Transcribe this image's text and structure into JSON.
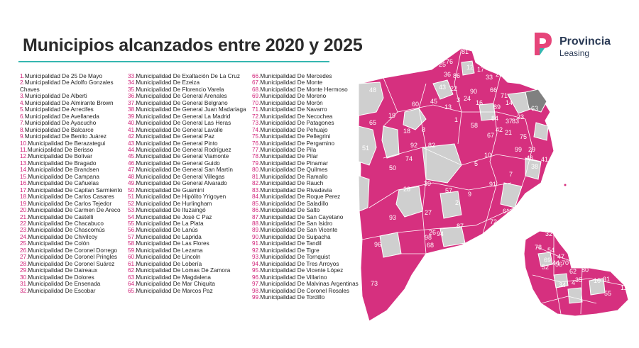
{
  "title": "Municipios alcanzados entre 2020 y 2025",
  "brand": {
    "line1": "Provincia",
    "line2": "Leasing"
  },
  "colors": {
    "accent_rule": "#35b6b0",
    "number": "#d1247a",
    "reached": "#d6307f",
    "not_reached": "#cfcfcf",
    "logo_pink": "#e6457a",
    "logo_teal": "#35b6b0",
    "logo_text": "#2a3a55"
  },
  "municipalities": [
    {
      "n": "1.",
      "name": "Municipalidad De 25 De Mayo"
    },
    {
      "n": "2.",
      "name": "Municipalidad De Adolfo Gonzales Chaves"
    },
    {
      "n": "3.",
      "name": "Municipalidad De Alberti"
    },
    {
      "n": "4.",
      "name": "Municipalidad De Almirante Brown"
    },
    {
      "n": "5.",
      "name": "Municipalidad De Arrecifes"
    },
    {
      "n": "6.",
      "name": "Municipalidad De Avellaneda"
    },
    {
      "n": "7.",
      "name": "Municipalidad De Ayacucho"
    },
    {
      "n": "8.",
      "name": "Municipalidad De Balcarce"
    },
    {
      "n": "9.",
      "name": "Municipalidad De Benito Juárez"
    },
    {
      "n": "10.",
      "name": "Municipalidad De Berazategui"
    },
    {
      "n": "11.",
      "name": "Municipalidad De Berisso"
    },
    {
      "n": "12.",
      "name": "Municipalidad De Bolívar"
    },
    {
      "n": "13.",
      "name": "Municipalidad De Bragado"
    },
    {
      "n": "14.",
      "name": "Municipalidad De Brandsen"
    },
    {
      "n": "15.",
      "name": "Municipalidad De Campana"
    },
    {
      "n": "16.",
      "name": "Municipalidad De Cañuelas"
    },
    {
      "n": "17.",
      "name": "Municipalidad De Capitan Sarmiento"
    },
    {
      "n": "18.",
      "name": "Municipalidad De Carlos Casares"
    },
    {
      "n": "19.",
      "name": "Municipalidad De Carlos Tejedor"
    },
    {
      "n": "20.",
      "name": "Municipalidad De Carmen De Areco"
    },
    {
      "n": "21.",
      "name": "Municipalidad De Castelli"
    },
    {
      "n": "22.",
      "name": "Municipalidad De Chacabuco"
    },
    {
      "n": "23.",
      "name": "Municipalidad De Chascomús"
    },
    {
      "n": "24.",
      "name": "Municipalidad De Chivilcoy"
    },
    {
      "n": "25.",
      "name": "Municipalidad De Colón"
    },
    {
      "n": "26.",
      "name": "Municipalidad De Coronel Dorrego"
    },
    {
      "n": "27.",
      "name": "Municipalidad De Coronel Pringles"
    },
    {
      "n": "28.",
      "name": "Municipalidad De Coronel Suárez"
    },
    {
      "n": "29.",
      "name": "Municipalidad De Daireaux"
    },
    {
      "n": "30.",
      "name": "Municipalidad De Dolores"
    },
    {
      "n": "31.",
      "name": "Municipalidad De Ensenada"
    },
    {
      "n": "32.",
      "name": "Municipalidad De Escobar"
    },
    {
      "n": "33.",
      "name": "Municipalidad De Exaltación De La Cruz"
    },
    {
      "n": "34.",
      "name": "Municipalidad De Ezeiza"
    },
    {
      "n": "35.",
      "name": "Municipalidad De Florencio Varela"
    },
    {
      "n": "36.",
      "name": "Municipalidad De General Arenales"
    },
    {
      "n": "37.",
      "name": "Municipalidad De General Belgrano"
    },
    {
      "n": "38.",
      "name": "Municipalidad De General Juan Madariaga"
    },
    {
      "n": "39.",
      "name": "Municipalidad De General La Madrid"
    },
    {
      "n": "40.",
      "name": "Municipalidad De General Las Heras"
    },
    {
      "n": "41.",
      "name": "Municipalidad De General Lavalle"
    },
    {
      "n": "42.",
      "name": "Municipalidad De General Paz"
    },
    {
      "n": "43.",
      "name": "Municipalidad De General Pinto"
    },
    {
      "n": "44.",
      "name": "Municipalidad De General Rodríguez"
    },
    {
      "n": "45.",
      "name": "Municipalidad De General Viamonte"
    },
    {
      "n": "46.",
      "name": "Municipalidad De General Guido"
    },
    {
      "n": "47.",
      "name": "Municipalidad De General San Martín"
    },
    {
      "n": "48.",
      "name": "Municipalidad De General Villegas"
    },
    {
      "n": "49.",
      "name": "Municipalidad De General Alvarado"
    },
    {
      "n": "50.",
      "name": "Municipalidad De Guaminí"
    },
    {
      "n": "51.",
      "name": "Municipalidad De Hipólito Yrigoyen"
    },
    {
      "n": "52.",
      "name": "Municipalidad De Hurlingham"
    },
    {
      "n": "53.",
      "name": "Municipalidad De Ituzaingó"
    },
    {
      "n": "54.",
      "name": "Municipalidad De José C Paz"
    },
    {
      "n": "55.",
      "name": "Municipalidad De La Plata"
    },
    {
      "n": "56.",
      "name": "Municipalidad De Lanús"
    },
    {
      "n": "57.",
      "name": "Municipalidad De Laprida"
    },
    {
      "n": "58.",
      "name": "Municipalidad De Las Flores"
    },
    {
      "n": "59.",
      "name": "Municipalidad De Lezama"
    },
    {
      "n": "60.",
      "name": "Municipalidad De Lincoln"
    },
    {
      "n": "61.",
      "name": "Municipalidad De Lobería"
    },
    {
      "n": "62.",
      "name": "Municipalidad De Lomas De Zamora"
    },
    {
      "n": "63.",
      "name": "Municipalidad De Magdalena"
    },
    {
      "n": "64.",
      "name": "Municipalidad De Mar Chiquita"
    },
    {
      "n": "65.",
      "name": "Municipalidad De Marcos Paz"
    },
    {
      "n": "66.",
      "name": "Municipalidad De Mercedes"
    },
    {
      "n": "67.",
      "name": "Municipalidad De Monte"
    },
    {
      "n": "68.",
      "name": "Municipalidad De Monte Hermoso"
    },
    {
      "n": "69.",
      "name": "Municipalidad De Moreno"
    },
    {
      "n": "70.",
      "name": "Municipalidad De Morón"
    },
    {
      "n": "71.",
      "name": "Municipalidad De Navarro"
    },
    {
      "n": "72.",
      "name": "Municipalidad De Necochea"
    },
    {
      "n": "73.",
      "name": "Municipalidad De Patagones"
    },
    {
      "n": "74.",
      "name": "Municipalidad De Pehuajo"
    },
    {
      "n": "75.",
      "name": "Municipalidad De Pellegrini"
    },
    {
      "n": "76.",
      "name": "Municipalidad De Pergamino"
    },
    {
      "n": "77.",
      "name": "Municipalidad De Pila"
    },
    {
      "n": "78.",
      "name": "Municipalidad De Pilar"
    },
    {
      "n": "79.",
      "name": "Municipalidad De Pinamar"
    },
    {
      "n": "80.",
      "name": "Municipalidad De Quilmes"
    },
    {
      "n": "81.",
      "name": "Municipalidad De Ramallo"
    },
    {
      "n": "82.",
      "name": "Municipalidad De Rauch"
    },
    {
      "n": "83.",
      "name": "Municipalidad De Rivadavia"
    },
    {
      "n": "84.",
      "name": "Municipalidad De Roque Perez"
    },
    {
      "n": "85.",
      "name": "Municipalidad De Saladillo"
    },
    {
      "n": "86.",
      "name": "Municipalidad De Salto"
    },
    {
      "n": "87.",
      "name": "Municipalidad De San Cayetano"
    },
    {
      "n": "88.",
      "name": "Municipalidad De San Isidro"
    },
    {
      "n": "89.",
      "name": "Municipalidad De San Vicente"
    },
    {
      "n": "90.",
      "name": "Municipalidad De Suipacha"
    },
    {
      "n": "91.",
      "name": "Municipalidad De Tandil"
    },
    {
      "n": "92.",
      "name": "Municipalidad De Tigre"
    },
    {
      "n": "93.",
      "name": "Municipalidad De Tornquist"
    },
    {
      "n": "94.",
      "name": "Municipalidad De Tres Arroyos"
    },
    {
      "n": "95.",
      "name": "Municipalidad De Vicente López"
    },
    {
      "n": "96.",
      "name": "Municipalidad De Villarino"
    },
    {
      "n": "97.",
      "name": "Municipalidad De Malvinas Argentinas"
    },
    {
      "n": "98.",
      "name": "Municipalidad De Coronel  Rosales"
    },
    {
      "n": "99.",
      "name": "Municipalidad De Tordillo"
    }
  ],
  "map_labels": {
    "main": [
      "81",
      "25",
      "76",
      "12",
      "17",
      "36",
      "86",
      "33",
      "20",
      "27",
      "48",
      "22",
      "43",
      "66",
      "71",
      "60",
      "13",
      "45",
      "3",
      "90",
      "24",
      "16",
      "89",
      "14",
      "63",
      "19",
      "1",
      "84",
      "37",
      "42",
      "23",
      "83",
      "65",
      "18",
      "8",
      "58",
      "67",
      "21",
      "75",
      "51",
      "92",
      "82",
      "10",
      "99",
      "29",
      "74",
      "5",
      "46",
      "41",
      "50",
      "39",
      "7",
      "38",
      "79",
      "57",
      "91",
      "28",
      "9",
      "64",
      "2",
      "61",
      "93",
      "27",
      "87",
      "72",
      "49",
      "26",
      "94",
      "98",
      "96",
      "68",
      "73"
    ],
    "inset": [
      "32",
      "92",
      "88",
      "95",
      "78",
      "54",
      "47",
      "69",
      "44",
      "52",
      "56",
      "70",
      "62",
      "80",
      "34",
      "4",
      "35",
      "10",
      "31",
      "11",
      "55"
    ]
  }
}
